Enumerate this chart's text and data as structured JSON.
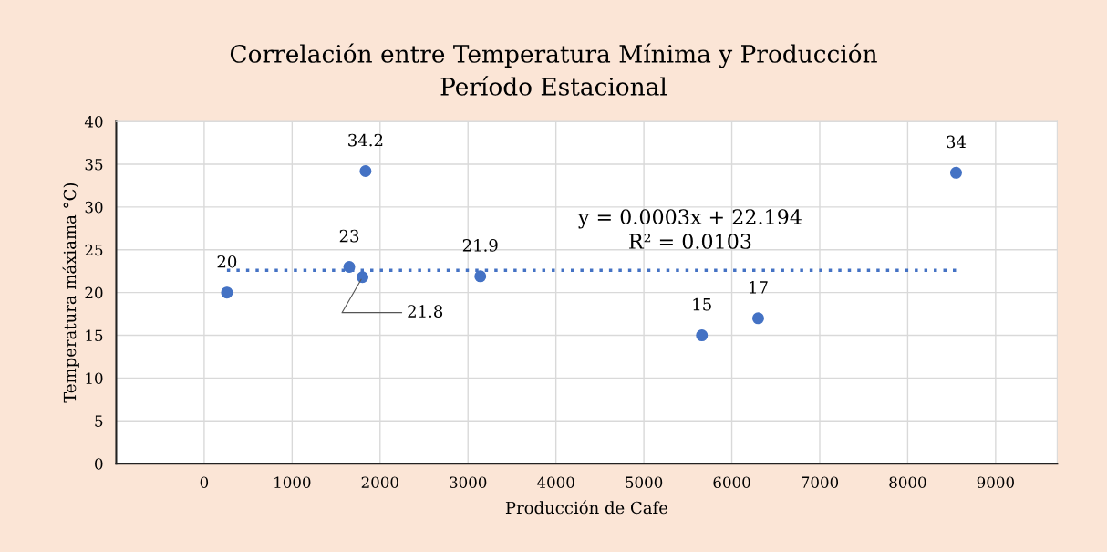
{
  "chart_data": {
    "type": "scatter",
    "title": "Correlación entre Temperatura Mínima y Producción\nPeríodo Estacional",
    "xlabel": "Producción de Cafe",
    "ylabel": "Temperatura máxiama °C)",
    "x": [
      259,
      1650,
      1800,
      1835,
      3140,
      5660,
      6300,
      8550
    ],
    "series": [
      {
        "color": "#4472c4",
        "values": [
          20,
          23,
          21.8,
          34.2,
          21.9,
          15,
          17,
          34
        ],
        "value_labels": [
          "20",
          "23",
          "21.8",
          "34.2",
          "21.9",
          "15",
          "17",
          "34"
        ],
        "marker": "circle"
      },
      {
        "type": "line",
        "color": "#4472c4",
        "x": [
          259,
          8550
        ],
        "values": [
          22.6,
          22.6
        ],
        "line_style": "dotted",
        "marker": "none"
      }
    ],
    "annotations": [
      "y = 0.0003x + 22.194\nR² = 0.0103"
    ],
    "xlim": [
      -1000,
      9700
    ],
    "xticks": [
      0,
      1000,
      2000,
      3000,
      4000,
      5000,
      6000,
      7000,
      8000,
      9000
    ],
    "ylim": [
      0,
      40
    ],
    "yticks": [
      0,
      5,
      10,
      15,
      20,
      25,
      30,
      35,
      40
    ],
    "grid": true,
    "legend": false
  }
}
